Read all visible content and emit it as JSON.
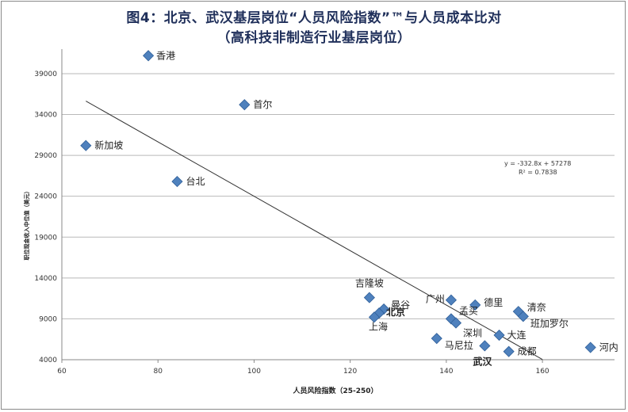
{
  "title": {
    "line1": "图4：北京、武汉基层岗位“人员风险指数”™与人员成本比对",
    "line2": "（高科技非制造行业基层岗位）"
  },
  "chart_data": {
    "type": "scatter",
    "xlabel": "人员风险指数（25-250）",
    "ylabel": "职位现金收入中位值（美元）",
    "xlim": [
      60,
      175
    ],
    "ylim": [
      4000,
      42000
    ],
    "xticks": [
      "60",
      "80",
      "100",
      "120",
      "140",
      "160"
    ],
    "yticks": [
      "4000",
      "9000",
      "14000",
      "19000",
      "24000",
      "29000",
      "34000",
      "39000"
    ],
    "grid": true,
    "marker_color": "#4f81bd",
    "points": [
      {
        "label": "香港",
        "x": 78,
        "y": 41200,
        "bold": false
      },
      {
        "label": "首尔",
        "x": 98,
        "y": 35200,
        "bold": false
      },
      {
        "label": "新加坡",
        "x": 65,
        "y": 30200,
        "bold": false
      },
      {
        "label": "台北",
        "x": 84,
        "y": 25800,
        "bold": false
      },
      {
        "label": "吉隆坡",
        "x": 124,
        "y": 11600,
        "bold": false
      },
      {
        "label": "曼谷",
        "x": 127,
        "y": 10200,
        "bold": false
      },
      {
        "label": "北京",
        "x": 126,
        "y": 9700,
        "bold": true
      },
      {
        "label": "上海",
        "x": 125,
        "y": 9200,
        "bold": false
      },
      {
        "label": "广州",
        "x": 141,
        "y": 11300,
        "bold": false
      },
      {
        "label": "孟买",
        "x": 141,
        "y": 9000,
        "bold": false
      },
      {
        "label": "深圳",
        "x": 142,
        "y": 8500,
        "bold": false
      },
      {
        "label": "德里",
        "x": 146,
        "y": 10700,
        "bold": false
      },
      {
        "label": "清奈",
        "x": 155,
        "y": 9900,
        "bold": false
      },
      {
        "label": "班加罗尔",
        "x": 156,
        "y": 9300,
        "bold": false
      },
      {
        "label": "大连",
        "x": 151,
        "y": 7000,
        "bold": false
      },
      {
        "label": "马尼拉",
        "x": 138,
        "y": 6600,
        "bold": false
      },
      {
        "label": "武汉",
        "x": 148,
        "y": 5700,
        "bold": true
      },
      {
        "label": "成都",
        "x": 153,
        "y": 5000,
        "bold": false
      },
      {
        "label": "河内",
        "x": 170,
        "y": 5500,
        "bold": false
      }
    ],
    "trendline": {
      "slope": -332.8,
      "intercept": 57278,
      "x_start": 65,
      "x_end": 160,
      "equation": "y = -332.8x + 57278",
      "r2": "R² = 0.7838"
    }
  }
}
